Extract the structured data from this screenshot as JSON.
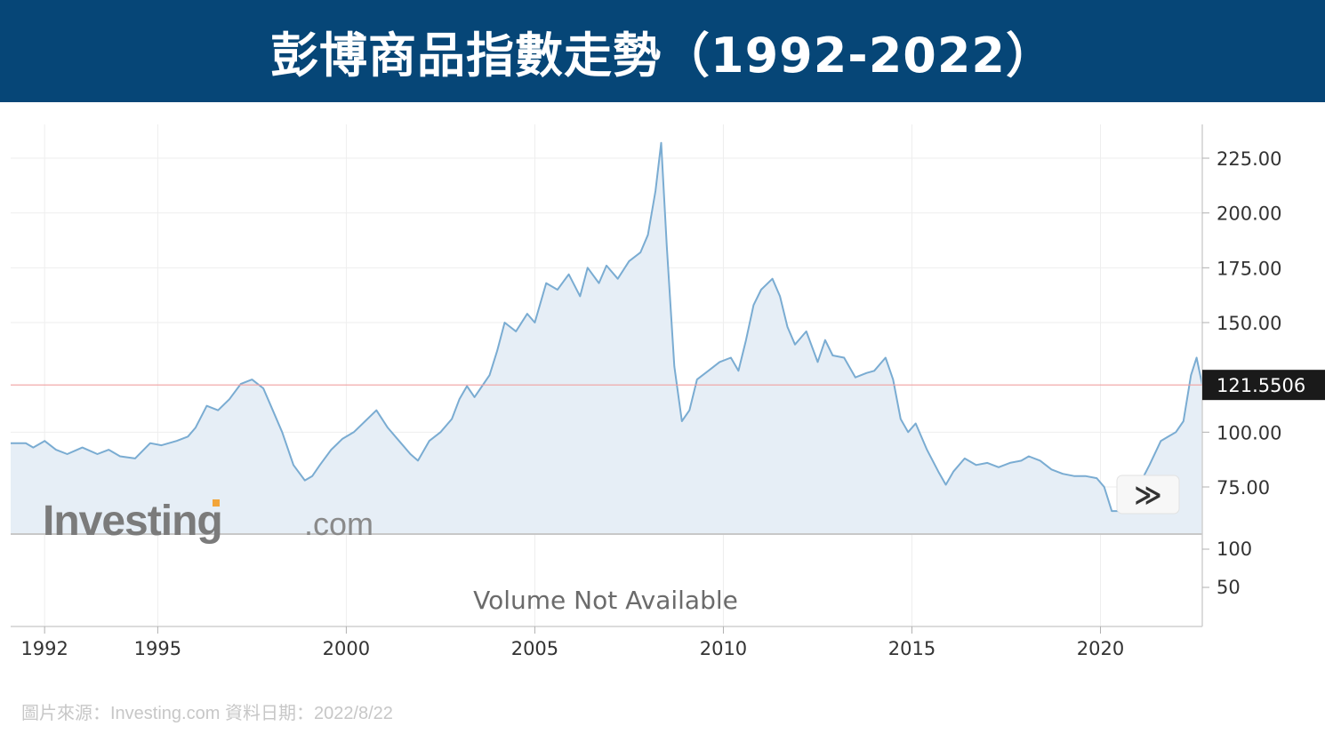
{
  "header": {
    "title": "彭博商品指數走勢（1992-2022）",
    "background_color": "#064677"
  },
  "footer": {
    "source_note": "圖片來源：Investing.com  資料日期：2022/8/22"
  },
  "watermark": {
    "brand": "Investing",
    "suffix": ".com"
  },
  "volume_panel": {
    "message": "Volume Not Available",
    "tick_labels": [
      "100",
      "50"
    ]
  },
  "nav_button": {
    "label": "≫"
  },
  "chart_data": {
    "type": "area",
    "x_tick_labels": [
      "1992",
      "1995",
      "2000",
      "2005",
      "2010",
      "2015",
      "2020"
    ],
    "x_ticks": [
      1992,
      1995,
      2000,
      2005,
      2010,
      2015,
      2020
    ],
    "xlim": [
      1991.1,
      2022.7
    ],
    "y_tick_labels": [
      "225.00",
      "200.00",
      "175.00",
      "150.00",
      "100.00",
      "75.00"
    ],
    "y_ticks": [
      225,
      200,
      175,
      150,
      100,
      75
    ],
    "ylim": [
      60,
      233
    ],
    "current_value_label": "121.5506",
    "current_value": 121.5506,
    "line_color": "#7aacd2",
    "fill_color": "#e6eef6",
    "reference_line_color": "#f0a0a0",
    "grid": true,
    "series": [
      {
        "x": [
          1991.1,
          1991.5,
          1991.7,
          1992.0,
          1992.3,
          1992.6,
          1993.0,
          1993.4,
          1993.7,
          1994.0,
          1994.4,
          1994.8,
          1995.1,
          1995.5,
          1995.8,
          1996.0,
          1996.3,
          1996.6,
          1996.9,
          1997.2,
          1997.5,
          1997.8,
          1998.0,
          1998.3,
          1998.6,
          1998.9,
          1999.1,
          1999.3,
          1999.6,
          1999.9,
          2000.2,
          2000.5,
          2000.8,
          2001.1,
          2001.4,
          2001.7,
          2001.9,
          2002.2,
          2002.5,
          2002.8,
          2003.0,
          2003.2,
          2003.4,
          2003.6,
          2003.8,
          2004.0,
          2004.2,
          2004.5,
          2004.8,
          2005.0,
          2005.3,
          2005.6,
          2005.9,
          2006.2,
          2006.4,
          2006.7,
          2006.9,
          2007.2,
          2007.5,
          2007.8,
          2008.0,
          2008.2,
          2008.35,
          2008.5,
          2008.7,
          2008.9,
          2009.1,
          2009.3,
          2009.6,
          2009.9,
          2010.2,
          2010.4,
          2010.6,
          2010.8,
          2011.0,
          2011.3,
          2011.5,
          2011.7,
          2011.9,
          2012.2,
          2012.5,
          2012.7,
          2012.9,
          2013.2,
          2013.5,
          2013.8,
          2014.0,
          2014.3,
          2014.5,
          2014.7,
          2014.9,
          2015.1,
          2015.4,
          2015.7,
          2015.9,
          2016.1,
          2016.4,
          2016.7,
          2017.0,
          2017.3,
          2017.6,
          2017.9,
          2018.1,
          2018.4,
          2018.7,
          2019.0,
          2019.3,
          2019.6,
          2019.9,
          2020.1,
          2020.3,
          2020.5,
          2020.7,
          2021.0,
          2021.3,
          2021.6,
          2021.8,
          2022.0,
          2022.2,
          2022.4,
          2022.55,
          2022.7
        ],
        "y": [
          95,
          95,
          93,
          96,
          92,
          90,
          93,
          90,
          92,
          89,
          88,
          95,
          94,
          96,
          98,
          102,
          112,
          110,
          115,
          122,
          124,
          120,
          112,
          100,
          85,
          78,
          80,
          85,
          92,
          97,
          100,
          105,
          110,
          102,
          96,
          90,
          87,
          96,
          100,
          106,
          115,
          121,
          116,
          121,
          126,
          137,
          150,
          146,
          154,
          150,
          168,
          165,
          172,
          162,
          175,
          168,
          176,
          170,
          178,
          182,
          190,
          210,
          232,
          185,
          130,
          105,
          110,
          124,
          128,
          132,
          134,
          128,
          142,
          158,
          165,
          170,
          162,
          148,
          140,
          146,
          132,
          142,
          135,
          134,
          125,
          127,
          128,
          134,
          124,
          106,
          100,
          104,
          92,
          82,
          76,
          82,
          88,
          85,
          86,
          84,
          86,
          87,
          89,
          87,
          83,
          81,
          80,
          80,
          79,
          75,
          64,
          64,
          67,
          75,
          85,
          96,
          98,
          100,
          105,
          126,
          134,
          121.55
        ]
      }
    ]
  }
}
